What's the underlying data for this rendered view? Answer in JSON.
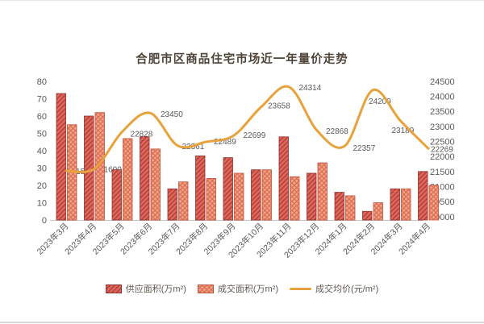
{
  "chart_data": {
    "type": "combo-bar-line",
    "title": "合肥市区商品住宅市场近一年量价走势",
    "categories": [
      "2023年3月",
      "2023年4月",
      "2023年5月",
      "2023年6月",
      "2023年7月",
      "2023年8月",
      "2023年9月",
      "2023年10月",
      "2023年11月",
      "2023年12月",
      "2024年1月",
      "2024年2月",
      "2024年3月",
      "2024年4月"
    ],
    "series": [
      {
        "name": "供应面积(万m²)",
        "type": "bar",
        "axis": "left",
        "values": [
          73,
          60,
          29,
          48,
          18,
          37,
          36,
          29,
          48,
          27,
          16,
          5,
          18,
          28
        ]
      },
      {
        "name": "成交面积(万m²)",
        "type": "bar",
        "axis": "left",
        "values": [
          55,
          62,
          47,
          41,
          22,
          24,
          27,
          29,
          25,
          33,
          14,
          10,
          18,
          20
        ]
      },
      {
        "name": "成交均价(元/m²)",
        "type": "line",
        "axis": "right",
        "values": [
          21530,
          21600,
          22828,
          23450,
          22361,
          22489,
          22699,
          23658,
          24314,
          22868,
          22357,
          24209,
          23189,
          22269
        ],
        "point_labels": [
          "21530",
          "21600",
          "22828",
          "23450",
          "22361",
          "22489",
          "22699",
          "23658",
          "24314",
          "22868",
          "22357",
          "24209",
          "23189",
          "22269"
        ]
      }
    ],
    "axis_left": {
      "min": 0,
      "max": 80,
      "step": 10
    },
    "axis_right": {
      "min": 20000,
      "max": 24500,
      "step": 500
    },
    "grid": "off",
    "legend_position": "bottom"
  },
  "colors": {
    "supply_fill": "#e0655a",
    "supply_hatch": "#a63b34",
    "supply_stroke": "#8e2f2a",
    "transaction_fill": "#f3a488",
    "transaction_hatch": "#d96a4e",
    "transaction_stroke": "#c2503a",
    "price_line": "#e9a23b",
    "axis_text": "#595959",
    "label_text": "#595959",
    "axis_line": "#c9c9c9",
    "title_text": "#4f4439"
  }
}
